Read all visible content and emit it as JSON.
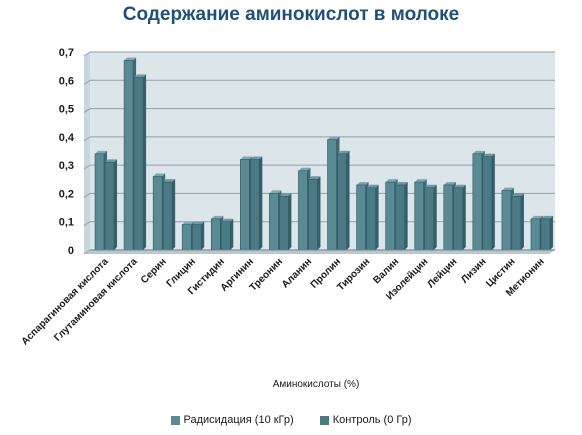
{
  "chart_data": {
    "type": "bar",
    "title": "Содержание аминокислот в молоке",
    "xlabel": "Аминокислоты (%)",
    "ylabel": "",
    "ylim": [
      0,
      0.7
    ],
    "y_ticks": [
      "0",
      "0,1",
      "0,2",
      "0,3",
      "0,4",
      "0,5",
      "0,6",
      "0,7"
    ],
    "grid": true,
    "legend_position": "bottom",
    "categories": [
      "Аспарагиновая кислота",
      "Глутаминовая кислота",
      "Серин",
      "Глицин",
      "Гистидин",
      "Аргинин",
      "Треонин",
      "Аланин",
      "Пролин",
      "Тирозин",
      "Валин",
      "Изолейцин",
      "Лейцин",
      "Лизин",
      "Цистин",
      "Метионин"
    ],
    "series": [
      {
        "name": "Радисидация (10 кГр)",
        "color": "#5a8a94",
        "values": [
          0.34,
          0.67,
          0.26,
          0.09,
          0.11,
          0.32,
          0.2,
          0.28,
          0.39,
          0.23,
          0.24,
          0.24,
          0.23,
          0.34,
          0.21,
          0.11
        ]
      },
      {
        "name": "Контроль (0 Гр)",
        "color": "#4a7a86",
        "values": [
          0.31,
          0.61,
          0.24,
          0.09,
          0.1,
          0.32,
          0.19,
          0.25,
          0.34,
          0.22,
          0.23,
          0.22,
          0.22,
          0.33,
          0.19,
          0.11
        ]
      }
    ]
  }
}
